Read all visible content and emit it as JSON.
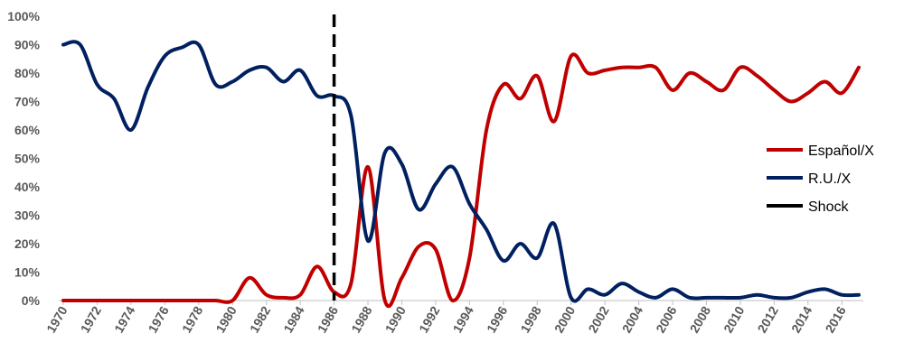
{
  "chart_data": {
    "type": "line",
    "title": "",
    "xlabel": "",
    "ylabel": "",
    "x": [
      1970,
      1971,
      1972,
      1973,
      1974,
      1975,
      1976,
      1977,
      1978,
      1979,
      1980,
      1981,
      1982,
      1983,
      1984,
      1985,
      1986,
      1987,
      1988,
      1989,
      1990,
      1991,
      1992,
      1993,
      1994,
      1995,
      1996,
      1997,
      1998,
      1999,
      2000,
      2001,
      2002,
      2003,
      2004,
      2005,
      2006,
      2007,
      2008,
      2009,
      2010,
      2011,
      2012,
      2013,
      2014,
      2015,
      2016,
      2017
    ],
    "xlim": [
      1970,
      2017
    ],
    "ylim": [
      0,
      1
    ],
    "y_ticks": [
      "0%",
      "10%",
      "20%",
      "30%",
      "40%",
      "50%",
      "60%",
      "70%",
      "80%",
      "90%",
      "100%"
    ],
    "x_ticks": [
      "1970",
      "1972",
      "1974",
      "1976",
      "1978",
      "1980",
      "1982",
      "1984",
      "1986",
      "1988",
      "1990",
      "1992",
      "1994",
      "1996",
      "1998",
      "2000",
      "2002",
      "2004",
      "2006",
      "2008",
      "2010",
      "2012",
      "2014",
      "2016"
    ],
    "grid": false,
    "legend_position": "right",
    "series": [
      {
        "name": "Español/X",
        "color": "#C00000",
        "values": [
          0,
          0,
          0,
          0,
          0,
          0,
          0,
          0,
          0,
          0,
          0,
          0.08,
          0.02,
          0.01,
          0.02,
          0.12,
          0.03,
          0.06,
          0.47,
          0,
          0.08,
          0.19,
          0.18,
          0,
          0.15,
          0.6,
          0.76,
          0.71,
          0.79,
          0.63,
          0.86,
          0.8,
          0.81,
          0.82,
          0.82,
          0.82,
          0.74,
          0.8,
          0.77,
          0.74,
          0.82,
          0.79,
          0.74,
          0.7,
          0.73,
          0.77,
          0.73,
          0.82
        ]
      },
      {
        "name": "R.U./X",
        "color": "#002060",
        "values": [
          0.9,
          0.9,
          0.76,
          0.71,
          0.6,
          0.75,
          0.86,
          0.89,
          0.9,
          0.76,
          0.77,
          0.81,
          0.82,
          0.77,
          0.81,
          0.72,
          0.72,
          0.65,
          0.21,
          0.52,
          0.48,
          0.32,
          0.41,
          0.47,
          0.34,
          0.25,
          0.14,
          0.2,
          0.15,
          0.27,
          0.01,
          0.04,
          0.02,
          0.06,
          0.03,
          0.01,
          0.04,
          0.01,
          0.01,
          0.01,
          0.01,
          0.02,
          0.01,
          0.01,
          0.03,
          0.04,
          0.02,
          0.02
        ]
      }
    ],
    "shock": {
      "name": "Shock",
      "x": 1986,
      "color": "#000000"
    }
  }
}
